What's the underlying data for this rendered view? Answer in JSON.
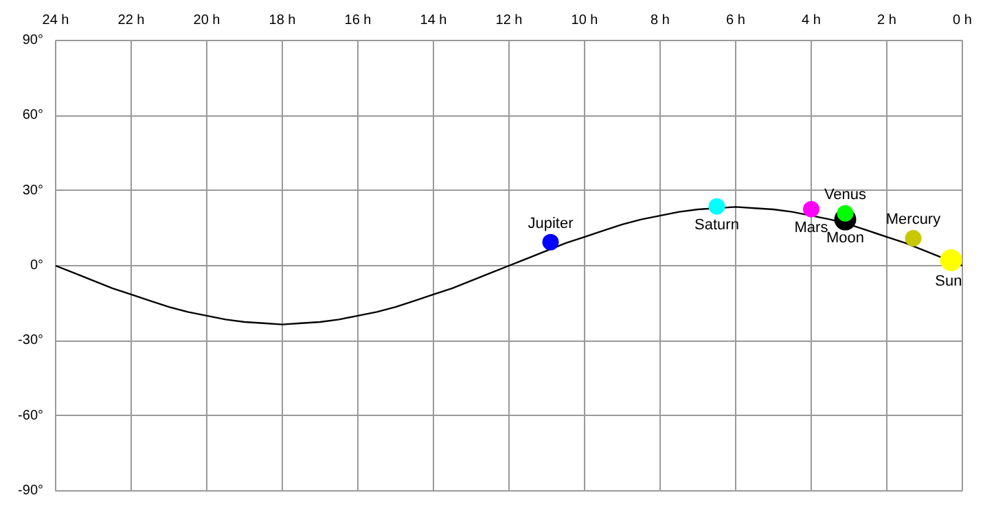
{
  "chart_data": {
    "type": "scatter",
    "xlim": [
      24,
      0
    ],
    "ylim": [
      -90,
      90
    ],
    "xticks": [
      {
        "value": 24,
        "label": "24 h"
      },
      {
        "value": 22,
        "label": "22 h"
      },
      {
        "value": 20,
        "label": "20 h"
      },
      {
        "value": 18,
        "label": "18 h"
      },
      {
        "value": 16,
        "label": "16 h"
      },
      {
        "value": 14,
        "label": "14 h"
      },
      {
        "value": 12,
        "label": "12 h"
      },
      {
        "value": 10,
        "label": "10 h"
      },
      {
        "value": 8,
        "label": "8 h"
      },
      {
        "value": 6,
        "label": "6 h"
      },
      {
        "value": 4,
        "label": "4 h"
      },
      {
        "value": 2,
        "label": "2 h"
      },
      {
        "value": 0,
        "label": "0 h"
      }
    ],
    "yticks": [
      {
        "value": 90,
        "label": "90°"
      },
      {
        "value": 60,
        "label": "60°"
      },
      {
        "value": 30,
        "label": "30°"
      },
      {
        "value": 0,
        "label": "0°"
      },
      {
        "value": -30,
        "label": "-30°"
      },
      {
        "value": -60,
        "label": "-60°"
      },
      {
        "value": -90,
        "label": "-90°"
      }
    ],
    "grid": true,
    "series": [
      {
        "type": "line",
        "color": "#000000",
        "marker": "none",
        "x": [
          0,
          0.5,
          1,
          1.5,
          2,
          2.5,
          3,
          3.5,
          4,
          4.5,
          5,
          5.5,
          6,
          6.5,
          7,
          7.5,
          8,
          8.5,
          9,
          9.5,
          10,
          10.5,
          11,
          11.5,
          12,
          12.5,
          13,
          13.5,
          14,
          14.5,
          15,
          15.5,
          16,
          16.5,
          17,
          17.5,
          18,
          18.5,
          19,
          19.5,
          20,
          20.5,
          21,
          21.5,
          22,
          22.5,
          23,
          23.5,
          24
        ],
        "values": [
          0,
          3,
          6,
          9,
          11.5,
          14,
          16.5,
          18.5,
          20,
          21.5,
          22.5,
          23,
          23.5,
          null,
          22.5,
          21.5,
          20,
          18.5,
          16.5,
          14,
          11.5,
          9,
          6,
          3,
          0,
          -3,
          -6,
          -9,
          -11.5,
          -14,
          -16.5,
          -18.5,
          -20,
          -21.5,
          -22.5,
          -23,
          -23.5,
          -23,
          -22.5,
          -21.5,
          -20,
          -18.5,
          -16.5,
          -14,
          -11.5,
          -9,
          -6,
          -3,
          0
        ]
      },
      {
        "name": "Jupiter",
        "color": "#0000ff",
        "x": [
          10.9
        ],
        "values": [
          9.4
        ]
      },
      {
        "name": "Saturn",
        "color": "#00ffff",
        "x": [
          6.5
        ],
        "values": [
          23.7
        ]
      },
      {
        "name": "Mars",
        "color": "#ff00ff",
        "x": [
          4.0
        ],
        "values": [
          22.6
        ]
      },
      {
        "name": "Venus",
        "color": "#00ff00",
        "x": [
          3.1
        ],
        "values": [
          20.9
        ]
      },
      {
        "name": "Moon",
        "color": "#000000",
        "x": [
          3.1
        ],
        "values": [
          18.5
        ]
      },
      {
        "name": "Mercury",
        "color": "#c8c800",
        "x": [
          1.3
        ],
        "values": [
          11.0
        ]
      },
      {
        "name": "Sun",
        "color": "#ffff00",
        "x": [
          0.3
        ],
        "values": [
          2.2
        ]
      }
    ]
  }
}
